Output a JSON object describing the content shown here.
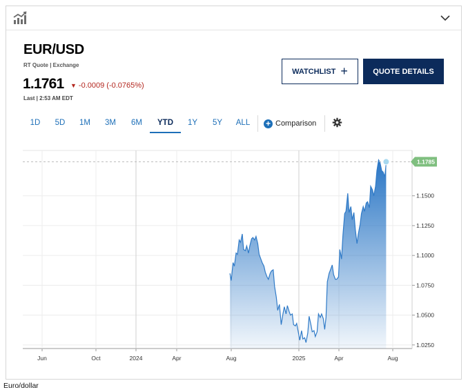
{
  "header": {
    "symbol": "EUR/USD",
    "quote_source": "RT Quote | Exchange",
    "price": "1.1761",
    "change": "-0.0009 (-0.0765%)",
    "change_direction": "down",
    "last_time": "Last | 2:53 AM EDT"
  },
  "buttons": {
    "watchlist": "WATCHLIST",
    "quote_details": "QUOTE DETAILS"
  },
  "tabs": [
    {
      "label": "1D"
    },
    {
      "label": "5D"
    },
    {
      "label": "1M"
    },
    {
      "label": "3M"
    },
    {
      "label": "6M"
    },
    {
      "label": "YTD",
      "active": true
    },
    {
      "label": "1Y"
    },
    {
      "label": "5Y"
    },
    {
      "label": "ALL"
    }
  ],
  "comparison_label": "Comparison",
  "icons": {
    "chart": "chart-icon",
    "chevron": "chevron-down-icon",
    "add": "plus-icon",
    "settings": "gear-icon"
  },
  "colors": {
    "navy": "#0c2b5b",
    "link_blue": "#1d6fb8",
    "negative": "#b3261e",
    "line": "#2f7ac7",
    "marker": "#a7d8ef",
    "price_tag": "#7fbf7f"
  },
  "caption": "Euro/dollar",
  "chart_data": {
    "type": "area",
    "title": "",
    "xlabel": "",
    "ylabel": "",
    "x_tick_labels": [
      "Jun",
      "Oct",
      "2024",
      "Apr",
      "Aug",
      "2025",
      "Apr",
      "Aug"
    ],
    "y_tick_labels": [
      "1.0250",
      "1.0500",
      "1.0750",
      "1.1000",
      "1.1250",
      "1.1500"
    ],
    "ylim": [
      1.022,
      1.188
    ],
    "current_price_label": "1.1785",
    "current_price": 1.1785,
    "grid": true,
    "series": [
      {
        "x": [
          "2024-07-29",
          "2024-08-01",
          "2024-08-05",
          "2024-08-08",
          "2024-08-12",
          "2024-08-15",
          "2024-08-19",
          "2024-08-22",
          "2024-08-26",
          "2024-08-29",
          "2024-09-02",
          "2024-09-05",
          "2024-09-09",
          "2024-09-12",
          "2024-09-16",
          "2024-09-19",
          "2024-09-23",
          "2024-09-26",
          "2024-09-30",
          "2024-10-03",
          "2024-10-07",
          "2024-10-10",
          "2024-10-14",
          "2024-10-17",
          "2024-10-21",
          "2024-10-24",
          "2024-10-28",
          "2024-10-31",
          "2024-11-04",
          "2024-11-07",
          "2024-11-11",
          "2024-11-14",
          "2024-11-18",
          "2024-11-22",
          "2024-11-26",
          "2024-11-29",
          "2024-12-03",
          "2024-12-06",
          "2024-12-10",
          "2024-12-13",
          "2024-12-17",
          "2024-12-20",
          "2024-12-24",
          "2024-12-27",
          "2024-12-31",
          "2025-01-03",
          "2025-01-07",
          "2025-01-10",
          "2025-01-14",
          "2025-01-17",
          "2025-01-21",
          "2025-01-24",
          "2025-01-28",
          "2025-01-31",
          "2025-02-04",
          "2025-02-07",
          "2025-02-11",
          "2025-02-14",
          "2025-02-18",
          "2025-02-21",
          "2025-02-25",
          "2025-02-28",
          "2025-03-03",
          "2025-03-06",
          "2025-03-10",
          "2025-03-13",
          "2025-03-17",
          "2025-03-20",
          "2025-03-24",
          "2025-03-27",
          "2025-03-31",
          "2025-04-03",
          "2025-04-07",
          "2025-04-10",
          "2025-04-14",
          "2025-04-17",
          "2025-04-21",
          "2025-04-24",
          "2025-04-28",
          "2025-05-01",
          "2025-05-05",
          "2025-05-08",
          "2025-05-12",
          "2025-05-15",
          "2025-05-19",
          "2025-05-22",
          "2025-05-26",
          "2025-05-29",
          "2025-06-02",
          "2025-06-05",
          "2025-06-09",
          "2025-06-12",
          "2025-06-16",
          "2025-06-19",
          "2025-06-23",
          "2025-06-26",
          "2025-06-30",
          "2025-07-03",
          "2025-07-07",
          "2025-07-10",
          "2025-07-14",
          "2025-07-17"
        ],
        "y": [
          1.085,
          1.079,
          1.094,
          1.091,
          1.102,
          1.101,
          1.113,
          1.111,
          1.118,
          1.105,
          1.104,
          1.108,
          1.102,
          1.108,
          1.114,
          1.115,
          1.113,
          1.116,
          1.11,
          1.101,
          1.097,
          1.094,
          1.091,
          1.086,
          1.082,
          1.08,
          1.085,
          1.087,
          1.088,
          1.074,
          1.065,
          1.054,
          1.059,
          1.042,
          1.051,
          1.057,
          1.051,
          1.058,
          1.053,
          1.05,
          1.051,
          1.042,
          1.041,
          1.043,
          1.035,
          1.029,
          1.037,
          1.03,
          1.031,
          1.027,
          1.035,
          1.049,
          1.042,
          1.036,
          1.037,
          1.032,
          1.036,
          1.051,
          1.048,
          1.051,
          1.047,
          1.038,
          1.048,
          1.078,
          1.085,
          1.088,
          1.092,
          1.084,
          1.08,
          1.08,
          1.082,
          1.105,
          1.097,
          1.117,
          1.135,
          1.137,
          1.152,
          1.136,
          1.141,
          1.13,
          1.136,
          1.122,
          1.11,
          1.118,
          1.126,
          1.135,
          1.141,
          1.137,
          1.144,
          1.145,
          1.14,
          1.158,
          1.155,
          1.15,
          1.158,
          1.171,
          1.18,
          1.178,
          1.171,
          1.17,
          1.166,
          1.177
        ]
      }
    ]
  }
}
